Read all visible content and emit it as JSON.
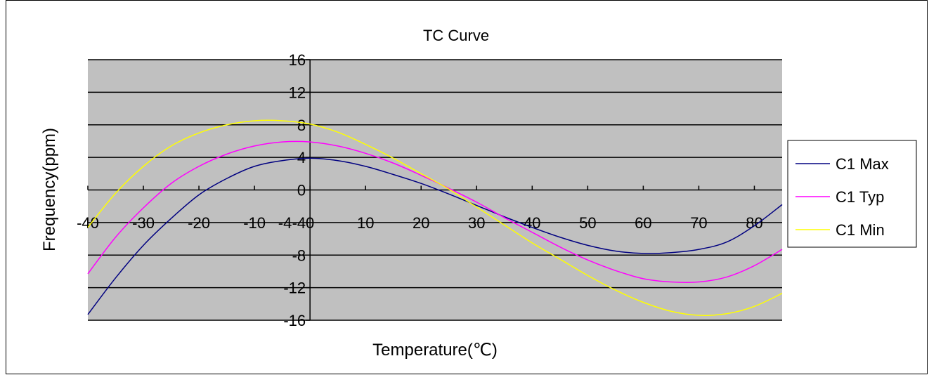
{
  "chart_data": {
    "type": "line",
    "title": "TC Curve",
    "xlabel": "Temperature(℃)",
    "ylabel": "Frequency(ppm)",
    "xlim": [
      -40,
      85
    ],
    "ylim": [
      -16,
      16
    ],
    "x_ticks": [
      "-40",
      "-30",
      "-20",
      "-10",
      "-4",
      "0",
      "10",
      "20",
      "30",
      "40",
      "50",
      "60",
      "70",
      "80"
    ],
    "y_ticks": [
      "16",
      "12",
      "8",
      "4",
      "0",
      "-4",
      "-8",
      "-12",
      "-16"
    ],
    "grid": true,
    "legend_position": "right",
    "plot_background": "#c0c0c0",
    "x": [
      -40,
      -35,
      -30,
      -25,
      -20,
      -15,
      -10,
      -5,
      0,
      5,
      10,
      15,
      20,
      25,
      30,
      35,
      40,
      45,
      50,
      55,
      60,
      65,
      70,
      75,
      80,
      85
    ],
    "series": [
      {
        "name": "C1 Max",
        "color": "#000080",
        "values": [
          -15.3,
          -10.8,
          -6.8,
          -3.5,
          -0.6,
          1.4,
          2.9,
          3.6,
          3.9,
          3.6,
          2.9,
          1.9,
          0.8,
          -0.5,
          -1.9,
          -3.3,
          -4.6,
          -5.8,
          -6.8,
          -7.5,
          -7.8,
          -7.7,
          -7.3,
          -6.4,
          -4.4,
          -1.8
        ]
      },
      {
        "name": "C1 Typ",
        "color": "#ff00ff",
        "values": [
          -10.3,
          -5.8,
          -2.2,
          0.8,
          2.9,
          4.4,
          5.4,
          5.9,
          5.9,
          5.4,
          4.5,
          3.3,
          1.8,
          0.2,
          -1.5,
          -3.4,
          -5.2,
          -7.0,
          -8.6,
          -9.9,
          -10.9,
          -11.3,
          -11.3,
          -10.7,
          -9.3,
          -7.3
        ]
      },
      {
        "name": "C1 Min",
        "color": "#ffff00",
        "values": [
          -4.6,
          -0.4,
          2.9,
          5.4,
          7.0,
          8.0,
          8.5,
          8.5,
          8.1,
          7.1,
          5.6,
          3.9,
          2.0,
          0.1,
          -2.1,
          -4.3,
          -6.5,
          -8.5,
          -10.5,
          -12.3,
          -13.8,
          -14.9,
          -15.4,
          -15.2,
          -14.3,
          -12.7
        ]
      }
    ]
  }
}
